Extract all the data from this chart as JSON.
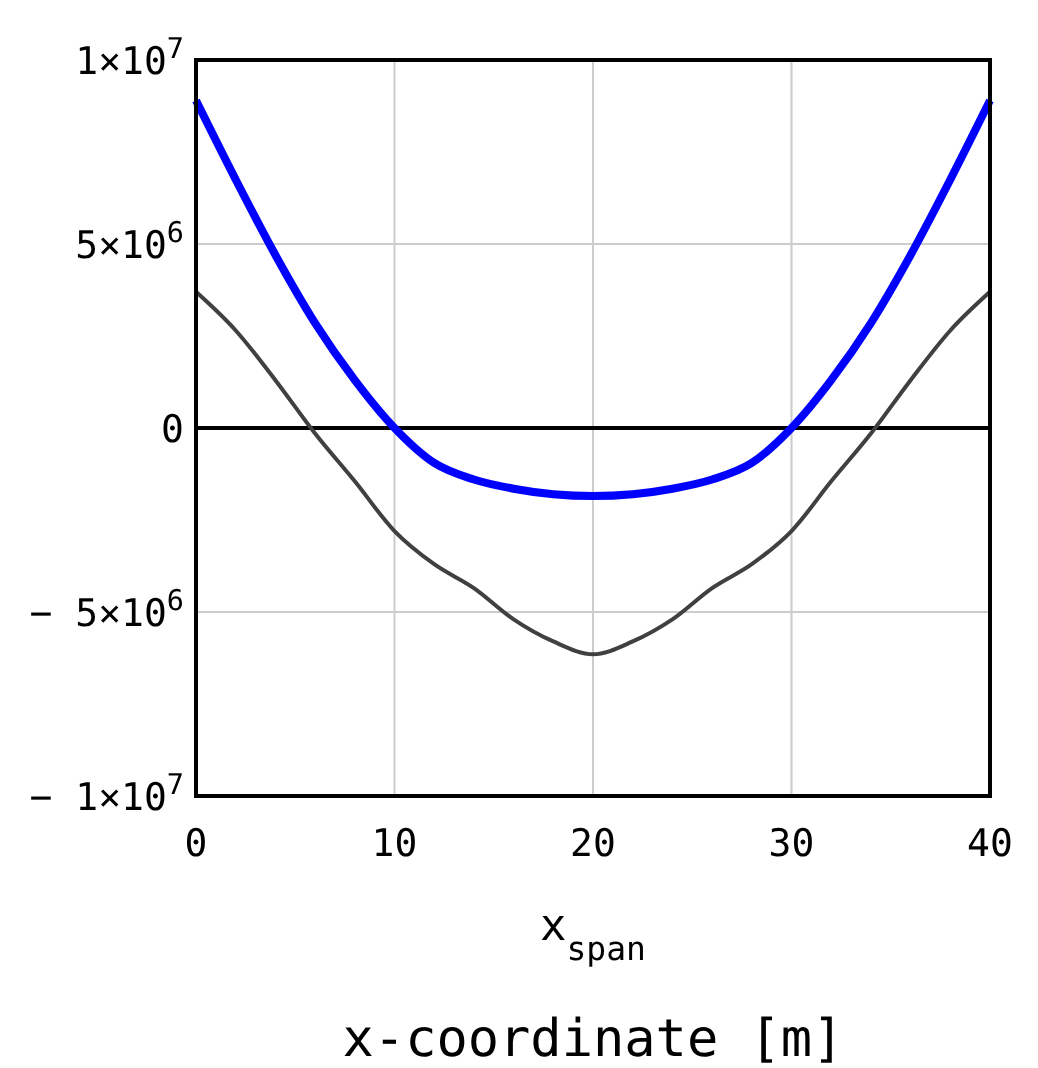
{
  "chart_data": {
    "type": "line",
    "xlabel": "x$_{span}$",
    "annotations": [
      "x-coordinate [m]"
    ],
    "x": [
      0,
      2,
      4,
      6,
      8,
      10,
      12,
      14,
      16,
      18,
      20,
      22,
      24,
      26,
      28,
      30,
      32,
      34,
      36,
      38,
      40
    ],
    "series": [
      {
        "color": "#0000ff",
        "values": [
          8900000.0,
          6750000.0,
          4700000.0,
          2850000.0,
          1300000.0,
          0,
          -950000.0,
          -1400000.0,
          -1650000.0,
          -1800000.0,
          -1850000.0,
          -1800000.0,
          -1650000.0,
          -1400000.0,
          -950000.0,
          0,
          1300000.0,
          2850000.0,
          4700000.0,
          6750000.0,
          8900000.0
        ]
      },
      {
        "color": "#404040",
        "values": [
          3700000.0,
          2650000.0,
          1300000.0,
          -150000.0,
          -1450000.0,
          -2800000.0,
          -3700000.0,
          -4350000.0,
          -5200000.0,
          -5800000.0,
          -6150000.0,
          -5800000.0,
          -5200000.0,
          -4350000.0,
          -3700000.0,
          -2800000.0,
          -1450000.0,
          -150000.0,
          1300000.0,
          2650000.0,
          3700000.0
        ]
      }
    ],
    "xlim": [
      0,
      40
    ],
    "xticks": [
      0,
      10,
      20,
      30,
      40
    ],
    "ylim": [
      -10000000.0,
      10000000.0
    ],
    "yticks": [
      {
        "value": -10000000.0,
        "label": "− 1×10$^{7}$"
      },
      {
        "value": -5000000.0,
        "label": "− 5×10$^{6}$"
      },
      {
        "value": 0,
        "label": "0"
      },
      {
        "value": 5000000.0,
        "label": "5×10$^{6}$"
      },
      {
        "value": 10000000.0,
        "label": "1×10$^{7}$"
      }
    ],
    "ref_lines": [
      {
        "axis": "y",
        "value": 0,
        "color": "#000000"
      }
    ],
    "grid": true
  }
}
